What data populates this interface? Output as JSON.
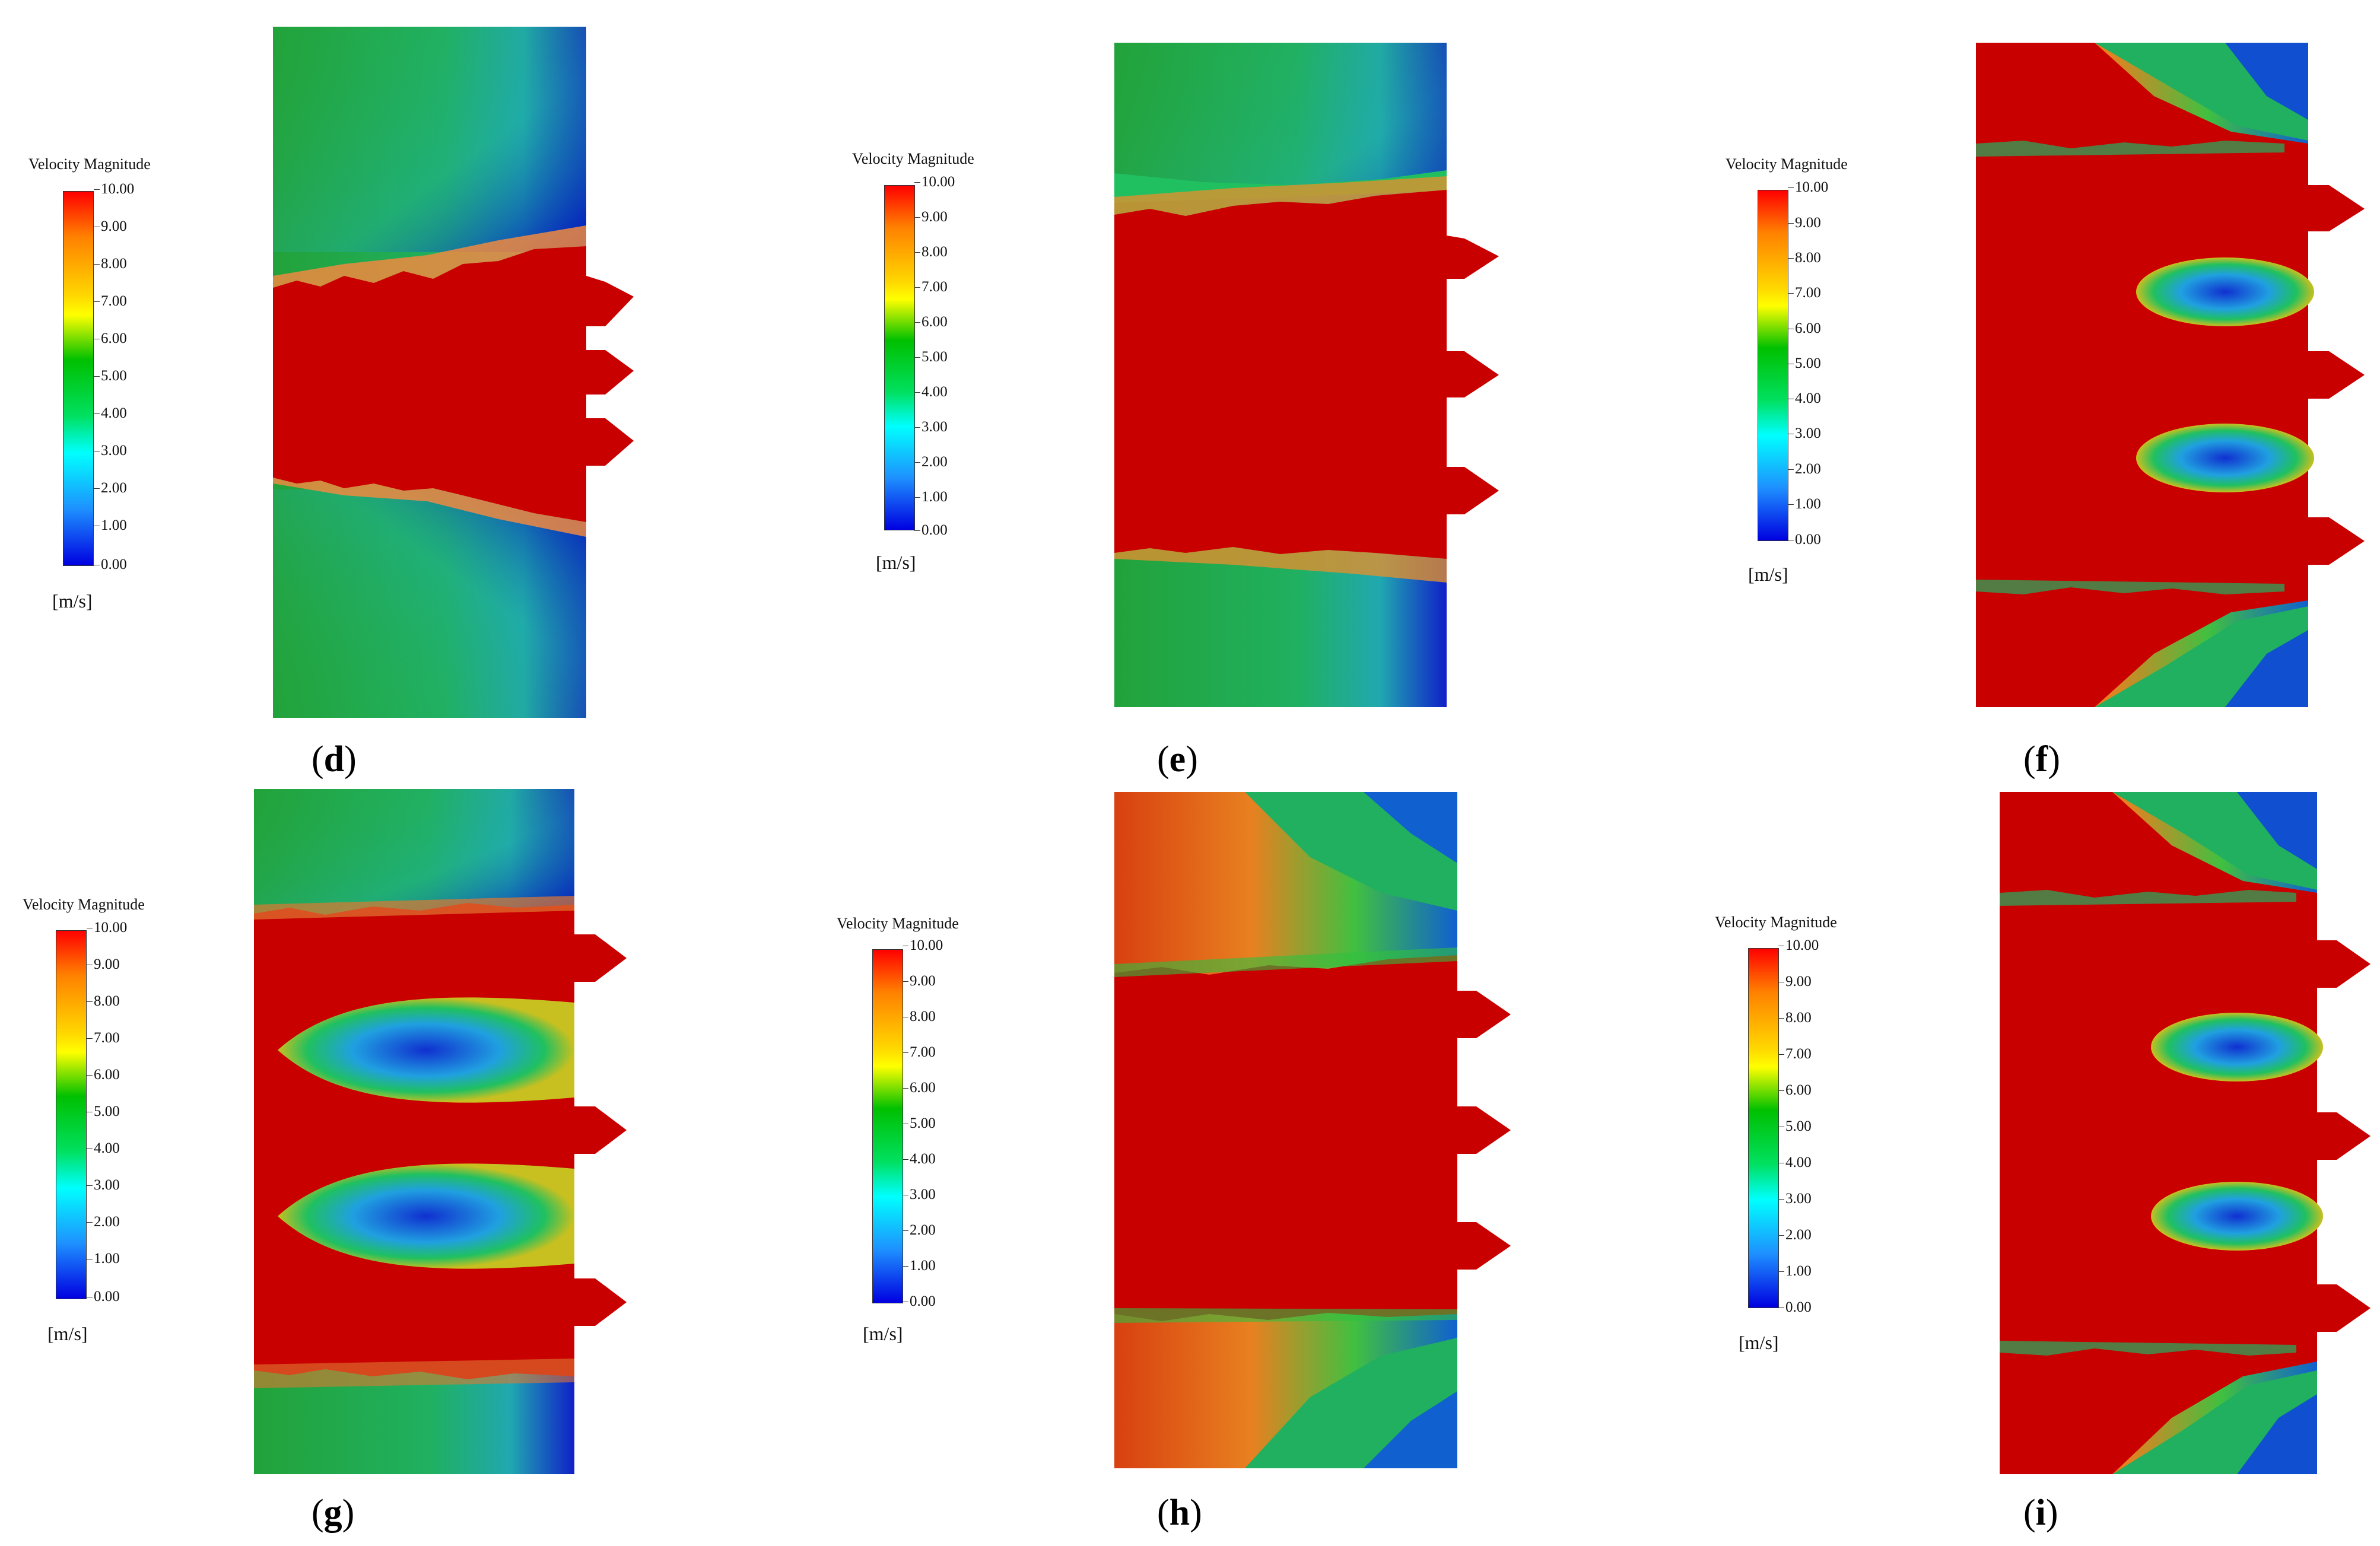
{
  "colorbar": {
    "title": "Velocity Magnitude",
    "ticks": [
      "10.00",
      "9.00",
      "8.00",
      "7.00",
      "6.00",
      "5.00",
      "4.00",
      "3.00",
      "2.00",
      "1.00",
      "0.00"
    ],
    "unit": "[m/s]"
  },
  "colors": {
    "high": "#c80000",
    "mid": "#10b020",
    "low": "#0010c0"
  },
  "panels": [
    {
      "id": "d",
      "label": "d"
    },
    {
      "id": "e",
      "label": "e"
    },
    {
      "id": "f",
      "label": "f"
    },
    {
      "id": "g",
      "label": "g"
    },
    {
      "id": "h",
      "label": "h"
    },
    {
      "id": "i",
      "label": "i"
    }
  ]
}
